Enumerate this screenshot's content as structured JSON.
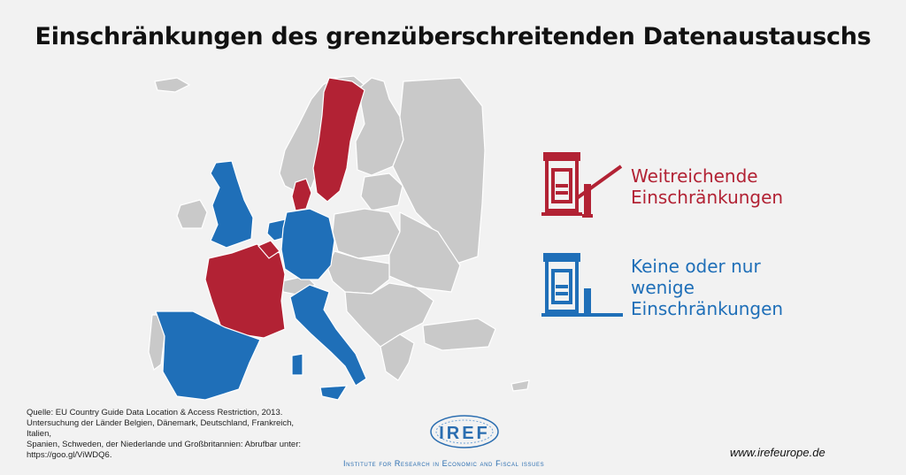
{
  "title": "Einschränkungen des grenzüberschreitenden Datenaustauschs",
  "colors": {
    "strong": "#b22234",
    "weak": "#1f6fb8",
    "other": "#c9c9c9",
    "background": "#f2f2f2"
  },
  "legend": [
    {
      "lines": [
        "Weitreichende",
        "Einschränkungen"
      ],
      "color": "#b22234",
      "icon": "toll-booth-barrier-closed-icon"
    },
    {
      "lines": [
        "Keine oder nur",
        "wenige",
        "Einschränkungen"
      ],
      "color": "#1f6fb8",
      "icon": "toll-booth-barrier-open-icon"
    }
  ],
  "countries": {
    "strong": [
      "Dänemark",
      "Frankreich",
      "Schweden",
      "Belgien"
    ],
    "weak": [
      "Deutschland",
      "Italien",
      "Spanien",
      "Niederlande",
      "Großbritannien"
    ]
  },
  "source": {
    "lines": [
      "Quelle: EU Country Guide Data Location & Access Restriction, 2013.",
      "Untersuchung der Länder Belgien, Dänemark, Deutschland, Frankreich, Italien,",
      "Spanien, Schweden, der Niederlande und Großbritannien: Abrufbar unter:",
      "https://goo.gl/ViWDQ6."
    ]
  },
  "logo": {
    "text": "IREF"
  },
  "institute": "Institute for Research in Economic and Fiscal issues",
  "website": "www.irefeurope.de"
}
